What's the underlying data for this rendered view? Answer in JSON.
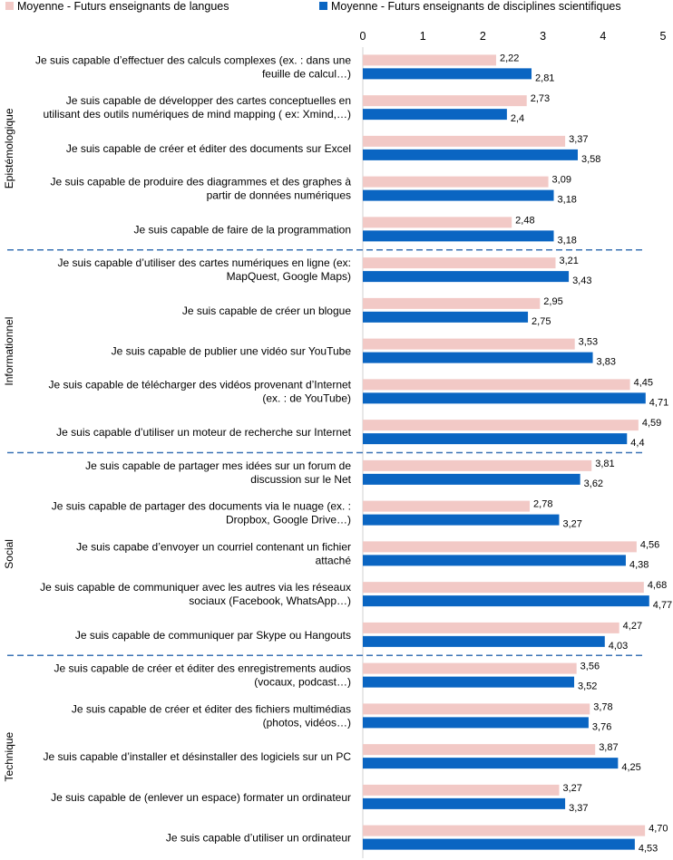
{
  "colors": {
    "series_a": "#f2c9c6",
    "series_b": "#0a65c2",
    "divider": "#3a73b5",
    "text": "#000000"
  },
  "chart_data": {
    "type": "bar",
    "orientation": "horizontal",
    "xlim": [
      0,
      5
    ],
    "ticks": [
      "0",
      "1",
      "2",
      "3",
      "4",
      "5"
    ],
    "grid": false,
    "legend_position": "top",
    "series": [
      {
        "name": "Moyenne  -  Futurs enseignants de langues",
        "color": "#f2c9c6",
        "values": [
          2.22,
          2.73,
          3.37,
          3.09,
          2.48,
          3.21,
          2.95,
          3.53,
          4.45,
          4.59,
          3.81,
          2.78,
          4.56,
          4.68,
          4.27,
          3.56,
          3.78,
          3.87,
          3.27,
          4.7
        ],
        "labels": [
          "2,22",
          "2,73",
          "3,37",
          "3,09",
          "2,48",
          "3,21",
          "2,95",
          "3,53",
          "4,45",
          "4,59",
          "3,81",
          "2,78",
          "4,56",
          "4,68",
          "4,27",
          "3,56",
          "3,78",
          "3,87",
          "3,27",
          "4,70"
        ]
      },
      {
        "name": "Moyenne  -  Futurs enseignants de disciplines scientifiques",
        "color": "#0a65c2",
        "values": [
          2.81,
          2.4,
          3.58,
          3.18,
          3.18,
          3.43,
          2.75,
          3.83,
          4.71,
          4.4,
          3.62,
          3.27,
          4.38,
          4.77,
          4.03,
          3.52,
          3.76,
          4.25,
          3.37,
          4.53
        ],
        "labels": [
          "2,81",
          "2,4",
          "3,58",
          "3,18",
          "3,18",
          "3,43",
          "2,75",
          "3,83",
          "4,71",
          "4,4",
          "3,62",
          "3,27",
          "4,38",
          "4,77",
          "4,03",
          "3,52",
          "3,76",
          "4,25",
          "3,37",
          "4,53"
        ]
      }
    ],
    "groups": [
      {
        "name": "Epistémologique",
        "start": 0,
        "count": 5
      },
      {
        "name": "Informationnel",
        "start": 5,
        "count": 5
      },
      {
        "name": "Social",
        "start": 10,
        "count": 5
      },
      {
        "name": "Technique",
        "start": 15,
        "count": 5
      }
    ],
    "categories": [
      [
        "Je suis capable d’effectuer des calculs complexes (ex. : dans une",
        "feuille de calcul…)"
      ],
      [
        "Je suis capable de développer des cartes conceptuelles en",
        "utilisant des outils numériques de mind mapping ( ex: Xmind,…)"
      ],
      [
        "Je suis capable de créer et éditer des documents sur Excel"
      ],
      [
        "Je suis capable de produire des diagrammes  et des graphes à",
        "partir de données numériques"
      ],
      [
        "Je suis capable de faire de la programmation"
      ],
      [
        "Je suis capable d’utiliser des cartes numériques en ligne (ex:",
        "MapQuest, Google Maps)"
      ],
      [
        "Je suis capable de créer un blogue"
      ],
      [
        "Je suis capable de publier une vidéo sur YouTube"
      ],
      [
        "Je suis capable de télécharger des vidéos provenant d’Internet",
        "(ex. : de YouTube)"
      ],
      [
        "Je suis capable d’utiliser un moteur de recherche sur Internet"
      ],
      [
        "Je suis capable de partager mes idées sur un forum de",
        "discussion sur le Net"
      ],
      [
        "Je suis capable de partager des documents via le nuage (ex. :",
        "Dropbox, Google Drive…)"
      ],
      [
        "Je suis capabe d’envoyer un courriel contenant un fichier",
        "attaché"
      ],
      [
        "Je suis capable de communiquer avec les autres via les réseaux",
        "sociaux (Facebook, WhatsApp…)"
      ],
      [
        "Je suis capable de communiquer par Skype ou Hangouts"
      ],
      [
        "Je suis capable de créer et éditer des enregistrements audios",
        "(vocaux, podcast…)"
      ],
      [
        "Je suis capable de créer et éditer des fichiers multimédias",
        "(photos, vidéos…)"
      ],
      [
        "Je suis capable d’installer et désinstaller des logiciels sur un PC"
      ],
      [
        "Je suis capable de (enlever un espace)  formater un ordinateur"
      ],
      [
        "Je suis capable d’utiliser un ordinateur"
      ]
    ]
  }
}
